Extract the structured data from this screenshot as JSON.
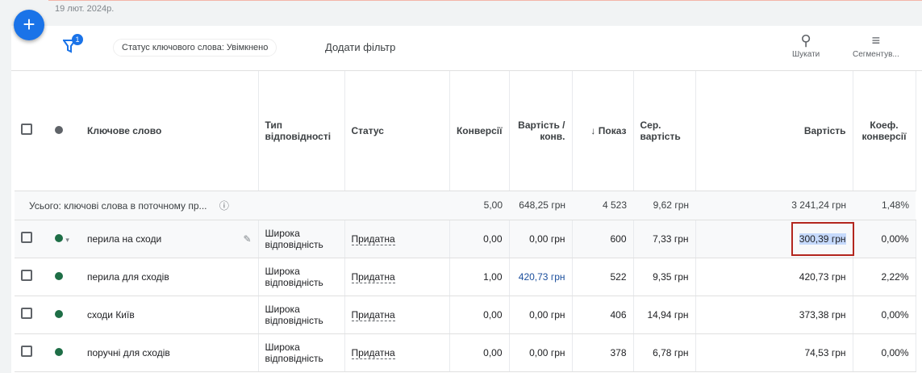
{
  "date": "19 лют. 2024р.",
  "filter": {
    "count": "1",
    "chip": "Статус ключового слова: Увімкнено",
    "add": "Додати фільтр"
  },
  "tools": {
    "search": "Шукати",
    "segment": "Сегментув..."
  },
  "columns": [
    "Ключове слово",
    "Тип відповідності",
    "Статус",
    "Конверсії",
    "Вартість / конв.",
    "Показ",
    "Сер. вартість",
    "Вартість",
    "Коеф. конверсії"
  ],
  "sort_arrow": "↓",
  "total": {
    "label": "Усього: ключові слова в поточному пр...",
    "conversions": "5,00",
    "cost_conv": "648,25 грн",
    "impr": "4 523",
    "avg": "9,62 грн",
    "cost": "3 241,24 грн",
    "rate": "1,48%"
  },
  "rows": [
    {
      "keyword": "перила на сходи",
      "type": "Широка відповідність",
      "status": "Придатна",
      "conversions": "0,00",
      "cost_conv": "0,00 грн",
      "impr": "600",
      "avg": "7,33 грн",
      "cost": "300,39 грн",
      "rate": "0,00%"
    },
    {
      "keyword": "перила для сходів",
      "type": "Широка відповідність",
      "status": "Придатна",
      "conversions": "1,00",
      "cost_conv": "420,73 грн",
      "impr": "522",
      "avg": "9,35 грн",
      "cost": "420,73 грн",
      "rate": "2,22%"
    },
    {
      "keyword": "сходи Київ",
      "type": "Широка відповідність",
      "status": "Придатна",
      "conversions": "0,00",
      "cost_conv": "0,00 грн",
      "impr": "406",
      "avg": "14,94 грн",
      "cost": "373,38 грн",
      "rate": "0,00%"
    },
    {
      "keyword": "поручні для сходів",
      "type": "Широка відповідність",
      "status": "Придатна",
      "conversions": "0,00",
      "cost_conv": "0,00 грн",
      "impr": "378",
      "avg": "6,78 грн",
      "cost": "74,53 грн",
      "rate": "0,00%"
    }
  ]
}
